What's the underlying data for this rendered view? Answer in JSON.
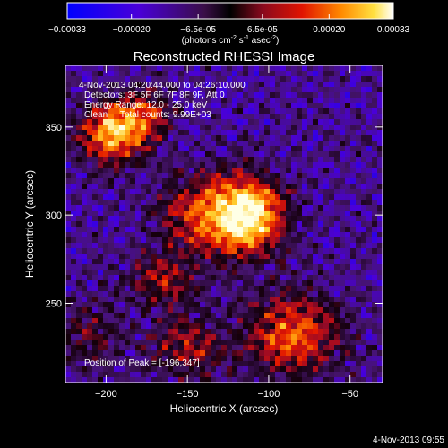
{
  "chart_data": {
    "type": "heatmap",
    "title": "Reconstructed RHESSI Image",
    "xlabel": "Heliocentric X (arcsec)",
    "ylabel": "Heliocentric Y (arcsec)",
    "xlim": [
      -225,
      -30
    ],
    "ylim": [
      205,
      385
    ],
    "x_ticks": [
      -200,
      -150,
      -100,
      -50
    ],
    "y_ticks": [
      250,
      300,
      350
    ],
    "colorbar": {
      "range": [
        -0.00033,
        0.00033
      ],
      "tick_values": [
        -0.00033,
        -0.0002,
        -6.5e-05,
        6.5e-05,
        0.0002,
        0.00033
      ],
      "tick_labels": [
        "-0.00033",
        "-0.00020",
        "-6.5e-05",
        "6.5e-05",
        "0.00020",
        "0.00033"
      ],
      "units_prefix": "(photons cm",
      "units_exp1": "-2",
      "units_mid": " s",
      "units_exp2": "-1",
      "units_mid2": " asec",
      "units_exp3": "-2",
      "units_suffix": ")"
    },
    "annotations": {
      "time_range": "4-Nov-2013 04:20:44.000 to 04:26:10.000",
      "detectors": "Detectors: 3F 5F 6F 7F 8F 9F, Att 0",
      "energy_range": "Energy Range: 12.0 - 25.0 keV",
      "clean": "Clean     Total counts: 9.99E+03",
      "peak": "Position of Peak = [-196,347]"
    },
    "sources": [
      {
        "x": -196,
        "y": 347,
        "peak": 1.0,
        "sigma_x": 14,
        "sigma_y": 12
      },
      {
        "x": -175,
        "y": 357,
        "peak": 0.55,
        "sigma_x": 10,
        "sigma_y": 10
      },
      {
        "x": -132,
        "y": 300,
        "peak": 0.85,
        "sigma_x": 22,
        "sigma_y": 16
      },
      {
        "x": -110,
        "y": 300,
        "peak": 0.8,
        "sigma_x": 14,
        "sigma_y": 14
      },
      {
        "x": -85,
        "y": 232,
        "peak": 0.75,
        "sigma_x": 20,
        "sigma_y": 16
      },
      {
        "x": -165,
        "y": 262,
        "peak": 0.5,
        "sigma_x": 14,
        "sigma_y": 10
      },
      {
        "x": -150,
        "y": 225,
        "peak": 0.45,
        "sigma_x": 18,
        "sigma_y": 12
      },
      {
        "x": -210,
        "y": 232,
        "peak": 0.35,
        "sigma_x": 12,
        "sigma_y": 14
      }
    ]
  },
  "footer_date": "4-Nov-2013 09:55"
}
